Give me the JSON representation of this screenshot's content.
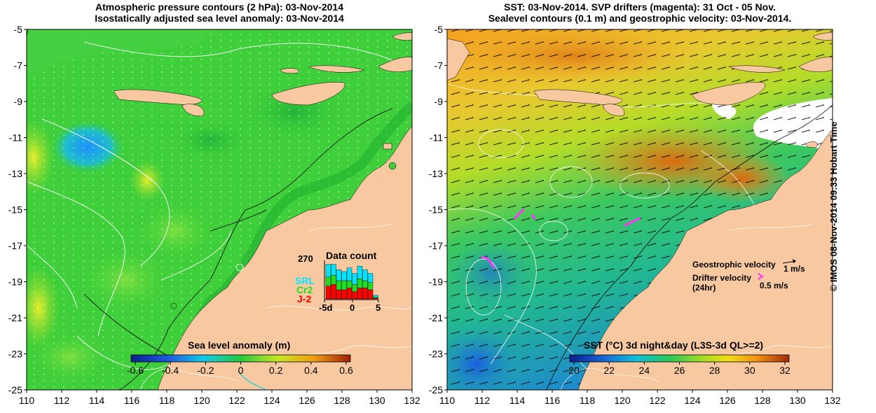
{
  "left_panel": {
    "title_line1": "Atmospheric pressure contours (2 hPa): 03-Nov-2014",
    "title_line2": "Isostatically adjusted sea level anomaly: 03-Nov-2014",
    "colorbar_label": "Sea level anomaly (m)",
    "colorbar_ticks": [
      "-0.6",
      "-0.4",
      "-0.2",
      "0",
      "0.2",
      "0.4",
      "0.6"
    ],
    "inset": {
      "title": "Data count",
      "ymax_label": "270",
      "satellites": [
        {
          "name": "SRL",
          "color": "#00e5ff"
        },
        {
          "name": "Cr2",
          "color": "#22dd22"
        },
        {
          "name": "J-2",
          "color": "#ff0000"
        }
      ],
      "x_ticks": [
        "-5d",
        "0",
        "5"
      ]
    }
  },
  "right_panel": {
    "title_line1": "SST: 03-Nov-2014. SVP drifters (magenta): 31 Oct - 05 Nov.",
    "title_line2": "Sealevel contours (0.1 m) and geostrophic velocity: 03-Nov-2014.",
    "colorbar_label": "SST (°C) 3d night&day (L3S-3d QL>=2)",
    "colorbar_ticks": [
      "20",
      "22",
      "24",
      "26",
      "28",
      "30",
      "32"
    ],
    "legend": {
      "geostrophic_label": "Geostrophic velocity",
      "geostrophic_scale": "1 m/s",
      "drifter_label": "Drifter velocity",
      "drifter_sub": "(24hr)",
      "drifter_scale": "0.5 m/s"
    }
  },
  "axes": {
    "lat_ticks": [
      "-5",
      "-7",
      "-9",
      "-11",
      "-13",
      "-15",
      "-17",
      "-19",
      "-21",
      "-23",
      "-25"
    ],
    "lon_ticks": [
      "110",
      "112",
      "114",
      "116",
      "118",
      "120",
      "122",
      "124",
      "126",
      "128",
      "130",
      "132"
    ]
  },
  "credit": "© IMOS 08-Nov-2014 09:33 Hobart Time",
  "colors": {
    "land": "#f8c9a0",
    "sla_ocean": "#3fcf3a",
    "sst_warm": "#f5a623",
    "sst_cool": "#33c47a",
    "drifter": "#ff33ff"
  }
}
